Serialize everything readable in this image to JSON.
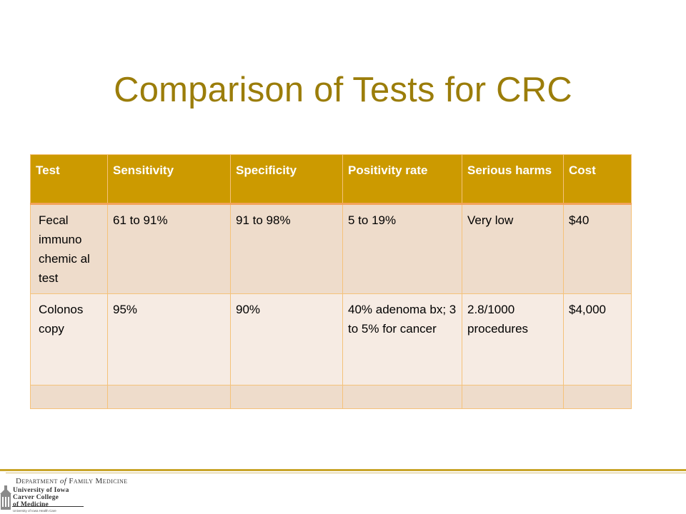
{
  "slide": {
    "title": "Comparison of Tests for CRC"
  },
  "table": {
    "headers": [
      "Test",
      "Sensitivity",
      "Specificity",
      "Positivity rate",
      "Serious harms",
      "Cost"
    ],
    "rows": [
      [
        "Fecal immuno chemic al test",
        "61 to 91%",
        "91 to 98%",
        "5 to 19%",
        "Very low",
        "$40"
      ],
      [
        "Colonos copy",
        "95%",
        "90%",
        "40% adenoma bx; 3 to 5% for cancer",
        "2.8/1000 procedures",
        "$4,000"
      ],
      [
        "",
        "",
        "",
        "",
        "",
        ""
      ]
    ]
  },
  "footer": {
    "department": "Department",
    "of": "of",
    "family_medicine": "Family Medicine",
    "logo_line1": "University of Iowa",
    "logo_line2": "Carver College",
    "logo_line3": "of Medicine",
    "logo_sub": "University of Iowa Health Care"
  },
  "colors": {
    "title": "#9b7d0a",
    "header_bg": "#cc9a00",
    "row_odd": "#eedccb",
    "row_even": "#f6ebe3",
    "footer_rule": "#c9a52a"
  }
}
